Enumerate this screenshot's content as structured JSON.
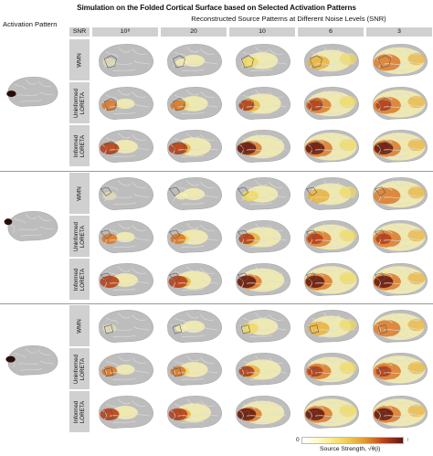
{
  "title": "Simulation on the Folded Cortical Surface based on Selected Activation Patterns",
  "activation_label": "Activation Pattern",
  "recon_title": "Reconstructed Source Patterns at Different Noise Levels (SNR)",
  "snr_label": "SNR",
  "snr_levels": [
    "10⁸",
    "20",
    "10",
    "6",
    "3"
  ],
  "methods": [
    "WMN",
    "Uninformed LORETA",
    "Informed LORETA"
  ],
  "colorbar": {
    "min": "0",
    "max": "↑",
    "label": "Source Strength, √θ(i)"
  },
  "colors": {
    "brain": "#bdbdbd",
    "sulci": "#dcdcdc",
    "activation": "#2a0c0c",
    "header_bg": "#d0d0d0"
  }
}
